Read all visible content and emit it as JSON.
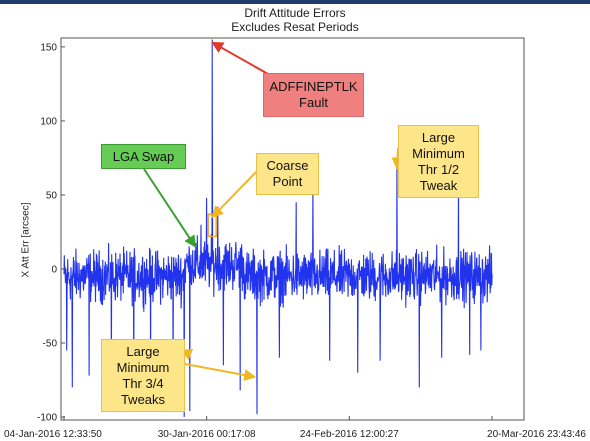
{
  "chart_data": {
    "type": "line",
    "title": "Drift Attitude Errors",
    "subtitle": "Excludes Resat Periods",
    "ylabel": "X Att Err [arcsec]",
    "xlabel": "",
    "ylim": [
      -102,
      156
    ],
    "yticks": [
      150,
      100,
      50,
      0,
      -50,
      -100
    ],
    "xticks": [
      "04-Jan-2016 12:33:50",
      "30-Jan-2016 00:17:08",
      "24-Feb-2016 12:00:27",
      "20-Mar-2016 23:43:46"
    ],
    "grid": false,
    "series": [
      {
        "color": "#2233ee",
        "baseline_noise_arcsec": 12,
        "x_start": "04-Jan-2016 12:33:50",
        "x_end": "21-Mar-2016 00:00:00",
        "spikes": [
          {
            "x": "05-Jan-2016",
            "y": -55
          },
          {
            "x": "06-Jan-2016",
            "y": -80
          },
          {
            "x": "09-Jan-2016",
            "y": -72
          },
          {
            "x": "13-Jan-2016",
            "y": -68
          },
          {
            "x": "17-Jan-2016",
            "y": -75
          },
          {
            "x": "20-Jan-2016",
            "y": -68
          },
          {
            "x": "24-Jan-2016",
            "y": -78
          },
          {
            "x": "26-Jan-2016",
            "y": -100
          },
          {
            "x": "27-Jan-2016",
            "y": -96
          },
          {
            "x": "29-Jan-2016",
            "y": 30
          },
          {
            "x": "30-Jan-2016",
            "y": 48
          },
          {
            "x": "31-Jan-2016",
            "y": 155
          },
          {
            "x": "01-Feb-2016",
            "y": 42
          },
          {
            "x": "02-Feb-2016",
            "y": -65
          },
          {
            "x": "05-Feb-2016",
            "y": -82
          },
          {
            "x": "08-Feb-2016",
            "y": -98
          },
          {
            "x": "12-Feb-2016",
            "y": -60
          },
          {
            "x": "15-Feb-2016",
            "y": 45
          },
          {
            "x": "18-Feb-2016",
            "y": 55
          },
          {
            "x": "21-Feb-2016",
            "y": -62
          },
          {
            "x": "26-Feb-2016",
            "y": -70
          },
          {
            "x": "01-Mar-2016",
            "y": -62
          },
          {
            "x": "04-Mar-2016",
            "y": 72
          },
          {
            "x": "08-Mar-2016",
            "y": -80
          },
          {
            "x": "12-Mar-2016",
            "y": -60
          },
          {
            "x": "15-Mar-2016",
            "y": 62
          },
          {
            "x": "17-Mar-2016",
            "y": -58
          },
          {
            "x": "19-Mar-2016",
            "y": -55
          }
        ]
      }
    ],
    "annotations": [
      {
        "text": "ADFFINEPTLK\nFault",
        "target": {
          "x": "31-Jan-2016",
          "y": 153
        },
        "color": "#f08080"
      },
      {
        "text": "LGA Swap",
        "target": {
          "x": "28-Jan-2016",
          "y": 15
        },
        "color": "#66cc55"
      },
      {
        "text": "Coarse\nPoint",
        "target": {
          "x": "31-Jan-2016",
          "y": 35
        },
        "color": "#fde68a"
      },
      {
        "text": "Large\nMinimum\nThr 1/2\nTweak",
        "target": {
          "x": "04-Mar-2016",
          "y": 68
        },
        "color": "#fde68a"
      },
      {
        "text": "Large\nMinimum\nThr 3/4\nTweaks",
        "target": {
          "x": "08-Feb-2016",
          "y": -73
        },
        "color": "#fde68a"
      }
    ]
  },
  "labels": {
    "ylabel": "X Att Err [arcsec]"
  }
}
